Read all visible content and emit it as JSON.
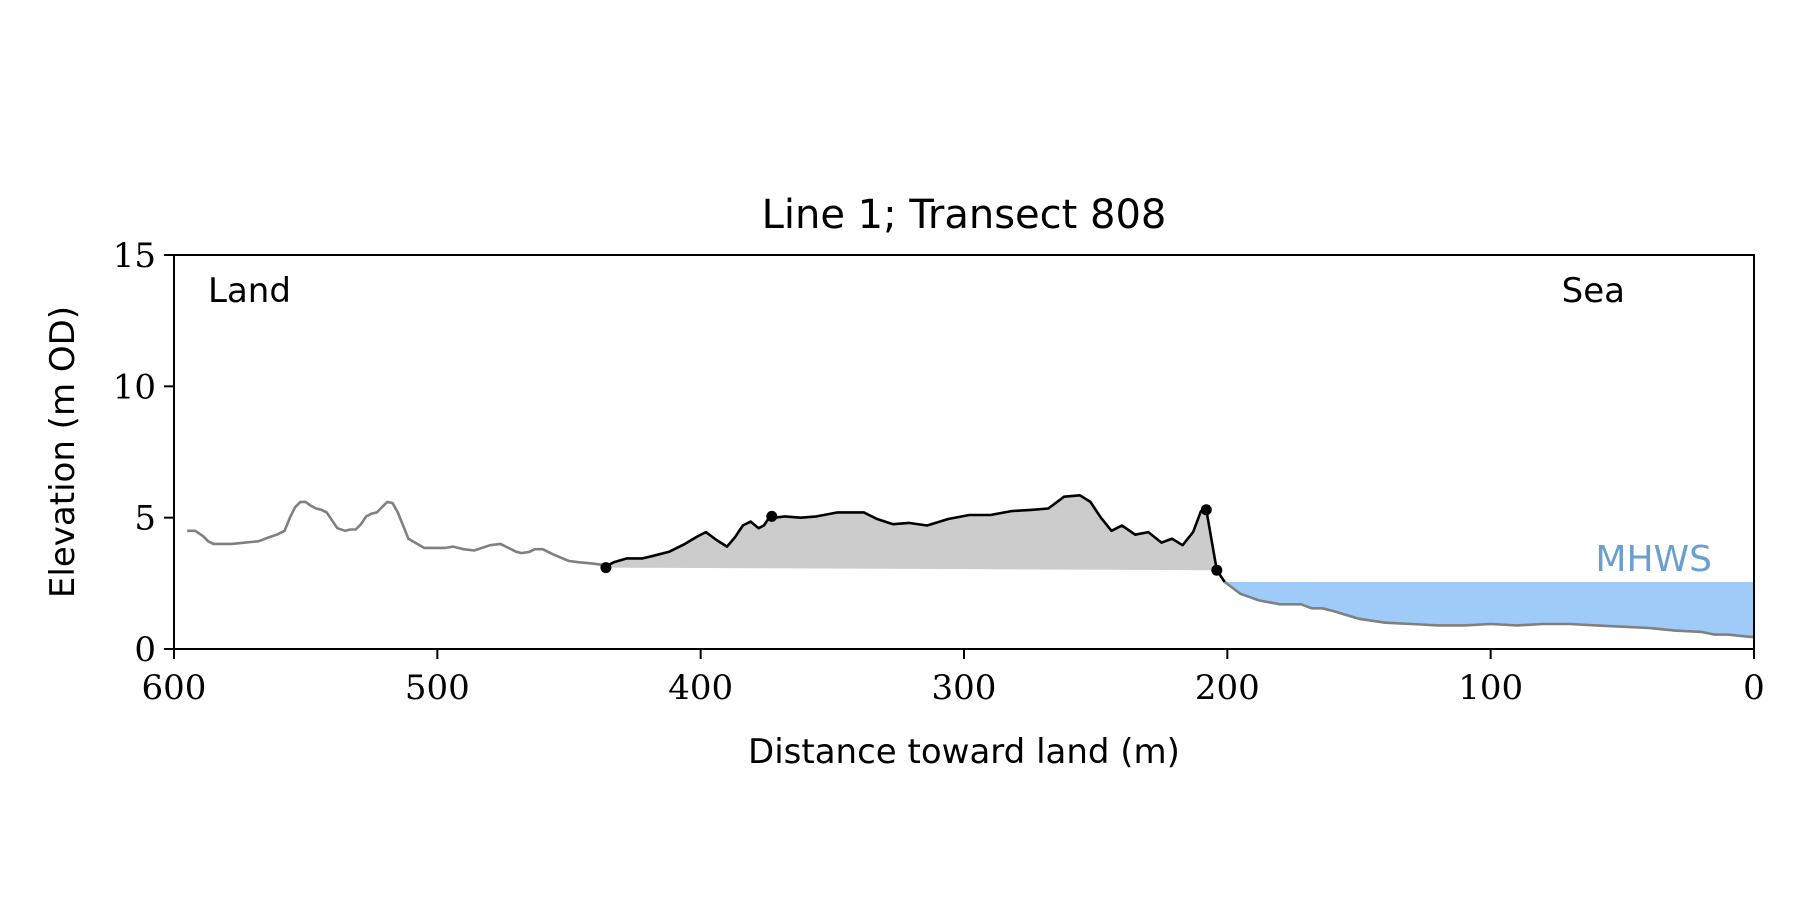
{
  "chart_data": {
    "type": "line",
    "title": "Line 1; Transect 808",
    "xlabel": "Distance toward land (m)",
    "ylabel": "Elevation (m OD)",
    "xlim": [
      600,
      0
    ],
    "ylim": [
      0,
      15
    ],
    "x_reversed": true,
    "x_ticks": [
      600,
      500,
      400,
      300,
      200,
      100,
      0
    ],
    "y_ticks": [
      0,
      5,
      10,
      15
    ],
    "grid": false,
    "annotations": {
      "land_label": "Land",
      "sea_label": "Sea",
      "mhws_label": "MHWS"
    },
    "mhws_level": 2.55,
    "mhws_x_range": [
      200,
      0
    ],
    "colors": {
      "profile": "#808080",
      "dune": "#000000",
      "dune_fill": "#cccccc",
      "water": "#9ecbf7",
      "mhws_text": "#6a9fd0"
    },
    "series": [
      {
        "x": [
          595,
          592,
          589,
          587,
          585,
          582,
          578,
          573,
          568,
          564,
          561,
          558,
          556,
          554,
          552,
          550,
          548,
          546,
          544,
          542,
          540,
          538,
          535,
          533,
          531,
          529,
          527,
          525,
          523,
          521,
          519,
          517,
          515,
          511,
          505,
          500,
          497,
          494,
          490,
          486,
          480,
          476,
          470,
          468,
          465,
          463,
          460,
          456,
          450,
          446,
          441,
          437
        ],
        "y": [
          4.5,
          4.5,
          4.3,
          4.1,
          4.0,
          4.0,
          4.0,
          4.05,
          4.1,
          4.25,
          4.35,
          4.5,
          5.0,
          5.4,
          5.6,
          5.6,
          5.45,
          5.35,
          5.3,
          5.2,
          4.9,
          4.6,
          4.5,
          4.55,
          4.55,
          4.75,
          5.05,
          5.15,
          5.2,
          5.4,
          5.6,
          5.55,
          5.2,
          4.2,
          3.85,
          3.85,
          3.85,
          3.9,
          3.8,
          3.75,
          3.95,
          4.0,
          3.7,
          3.65,
          3.7,
          3.8,
          3.8,
          3.6,
          3.35,
          3.3,
          3.25,
          3.2
        ]
      },
      {
        "x": [
          437,
          433,
          428,
          422,
          418,
          412,
          406,
          401,
          398,
          394,
          390,
          387,
          384,
          381,
          378,
          376,
          374,
          372,
          368,
          362,
          356,
          348,
          342,
          338,
          333,
          327,
          321,
          314,
          306,
          298,
          290,
          282,
          274,
          268,
          262,
          256,
          252,
          248,
          244,
          240,
          235,
          230,
          225,
          221,
          217,
          213,
          210,
          208
        ],
        "y": [
          3.1,
          3.3,
          3.45,
          3.45,
          3.55,
          3.7,
          4.0,
          4.3,
          4.45,
          4.15,
          3.9,
          4.25,
          4.7,
          4.85,
          4.6,
          4.7,
          5.0,
          5.0,
          5.05,
          5.0,
          5.05,
          5.2,
          5.2,
          5.2,
          4.95,
          4.75,
          4.8,
          4.7,
          4.95,
          5.1,
          5.1,
          5.25,
          5.3,
          5.35,
          5.8,
          5.85,
          5.6,
          5.0,
          4.5,
          4.7,
          4.35,
          4.45,
          4.05,
          4.2,
          3.95,
          4.45,
          5.25,
          5.3
        ]
      },
      {
        "x": [
          208,
          204,
          201
        ],
        "y": [
          5.3,
          3.0,
          2.55
        ]
      },
      {
        "x": [
          201,
          195,
          188,
          180,
          172,
          168,
          164,
          160,
          155,
          150,
          140,
          130,
          120,
          110,
          100,
          90,
          80,
          70,
          60,
          50,
          40,
          30,
          20,
          15,
          10,
          5,
          0
        ],
        "y": [
          2.55,
          2.1,
          1.85,
          1.7,
          1.7,
          1.55,
          1.55,
          1.45,
          1.3,
          1.15,
          1.0,
          0.95,
          0.9,
          0.9,
          0.95,
          0.9,
          0.95,
          0.95,
          0.9,
          0.85,
          0.8,
          0.7,
          0.65,
          0.55,
          0.55,
          0.5,
          0.45
        ]
      }
    ],
    "points": [
      {
        "x": 436,
        "y": 3.1
      },
      {
        "x": 373,
        "y": 5.05
      },
      {
        "x": 208,
        "y": 5.3
      },
      {
        "x": 204,
        "y": 3.0
      }
    ]
  }
}
